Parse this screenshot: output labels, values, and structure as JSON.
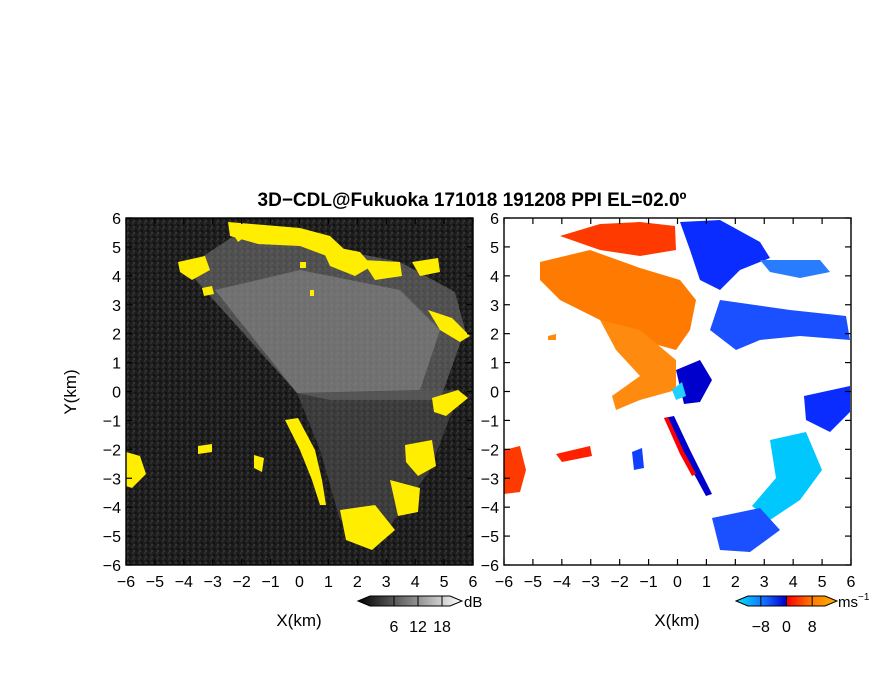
{
  "chart_data": [
    {
      "type": "heatmap",
      "title": "3D−CDL@Fukuoka 171018 191208 PPI EL=02.0º",
      "xlabel": "X(km)",
      "ylabel": "Y(km)",
      "xlim": [
        -6,
        6
      ],
      "ylim": [
        -6,
        6
      ],
      "x_ticks": [
        "−6",
        "−5",
        "−4",
        "−3",
        "−2",
        "−1",
        "0",
        "1",
        "2",
        "3",
        "4",
        "5",
        "6"
      ],
      "y_ticks": [
        "6",
        "5",
        "4",
        "3",
        "2",
        "1",
        "0",
        "−1",
        "−2",
        "−3",
        "−4",
        "−5",
        "−6"
      ],
      "colorbar": {
        "unit": "dB",
        "tick_labels": [
          "6",
          "12",
          "18"
        ],
        "ticks": [
          6,
          12,
          18
        ],
        "range": [
          0,
          20
        ],
        "colors": [
          "#000000",
          "#ffffff"
        ]
      },
      "highlight_color": "#ffee00",
      "background_color": "#1a1a1a"
    },
    {
      "type": "heatmap",
      "xlabel": "X(km)",
      "xlim": [
        -6,
        6
      ],
      "ylim": [
        -6,
        6
      ],
      "x_ticks": [
        "−6",
        "−5",
        "−4",
        "−3",
        "−2",
        "−1",
        "0",
        "1",
        "2",
        "3",
        "4",
        "5",
        "6"
      ],
      "y_ticks": [
        "6",
        "5",
        "4",
        "3",
        "2",
        "1",
        "0",
        "−1",
        "−2",
        "−3",
        "−4",
        "−5",
        "−6"
      ],
      "colorbar": {
        "unit": "ms",
        "unit_exponent": "−1",
        "tick_labels": [
          "−8",
          "0",
          "8"
        ],
        "ticks": [
          -8,
          0,
          8
        ],
        "range": [
          -12,
          12
        ],
        "colors": [
          "#00e5ff",
          "#1565ff",
          "#0000cc",
          "#ff0000",
          "#ff7a00",
          "#ffb000"
        ]
      }
    }
  ]
}
